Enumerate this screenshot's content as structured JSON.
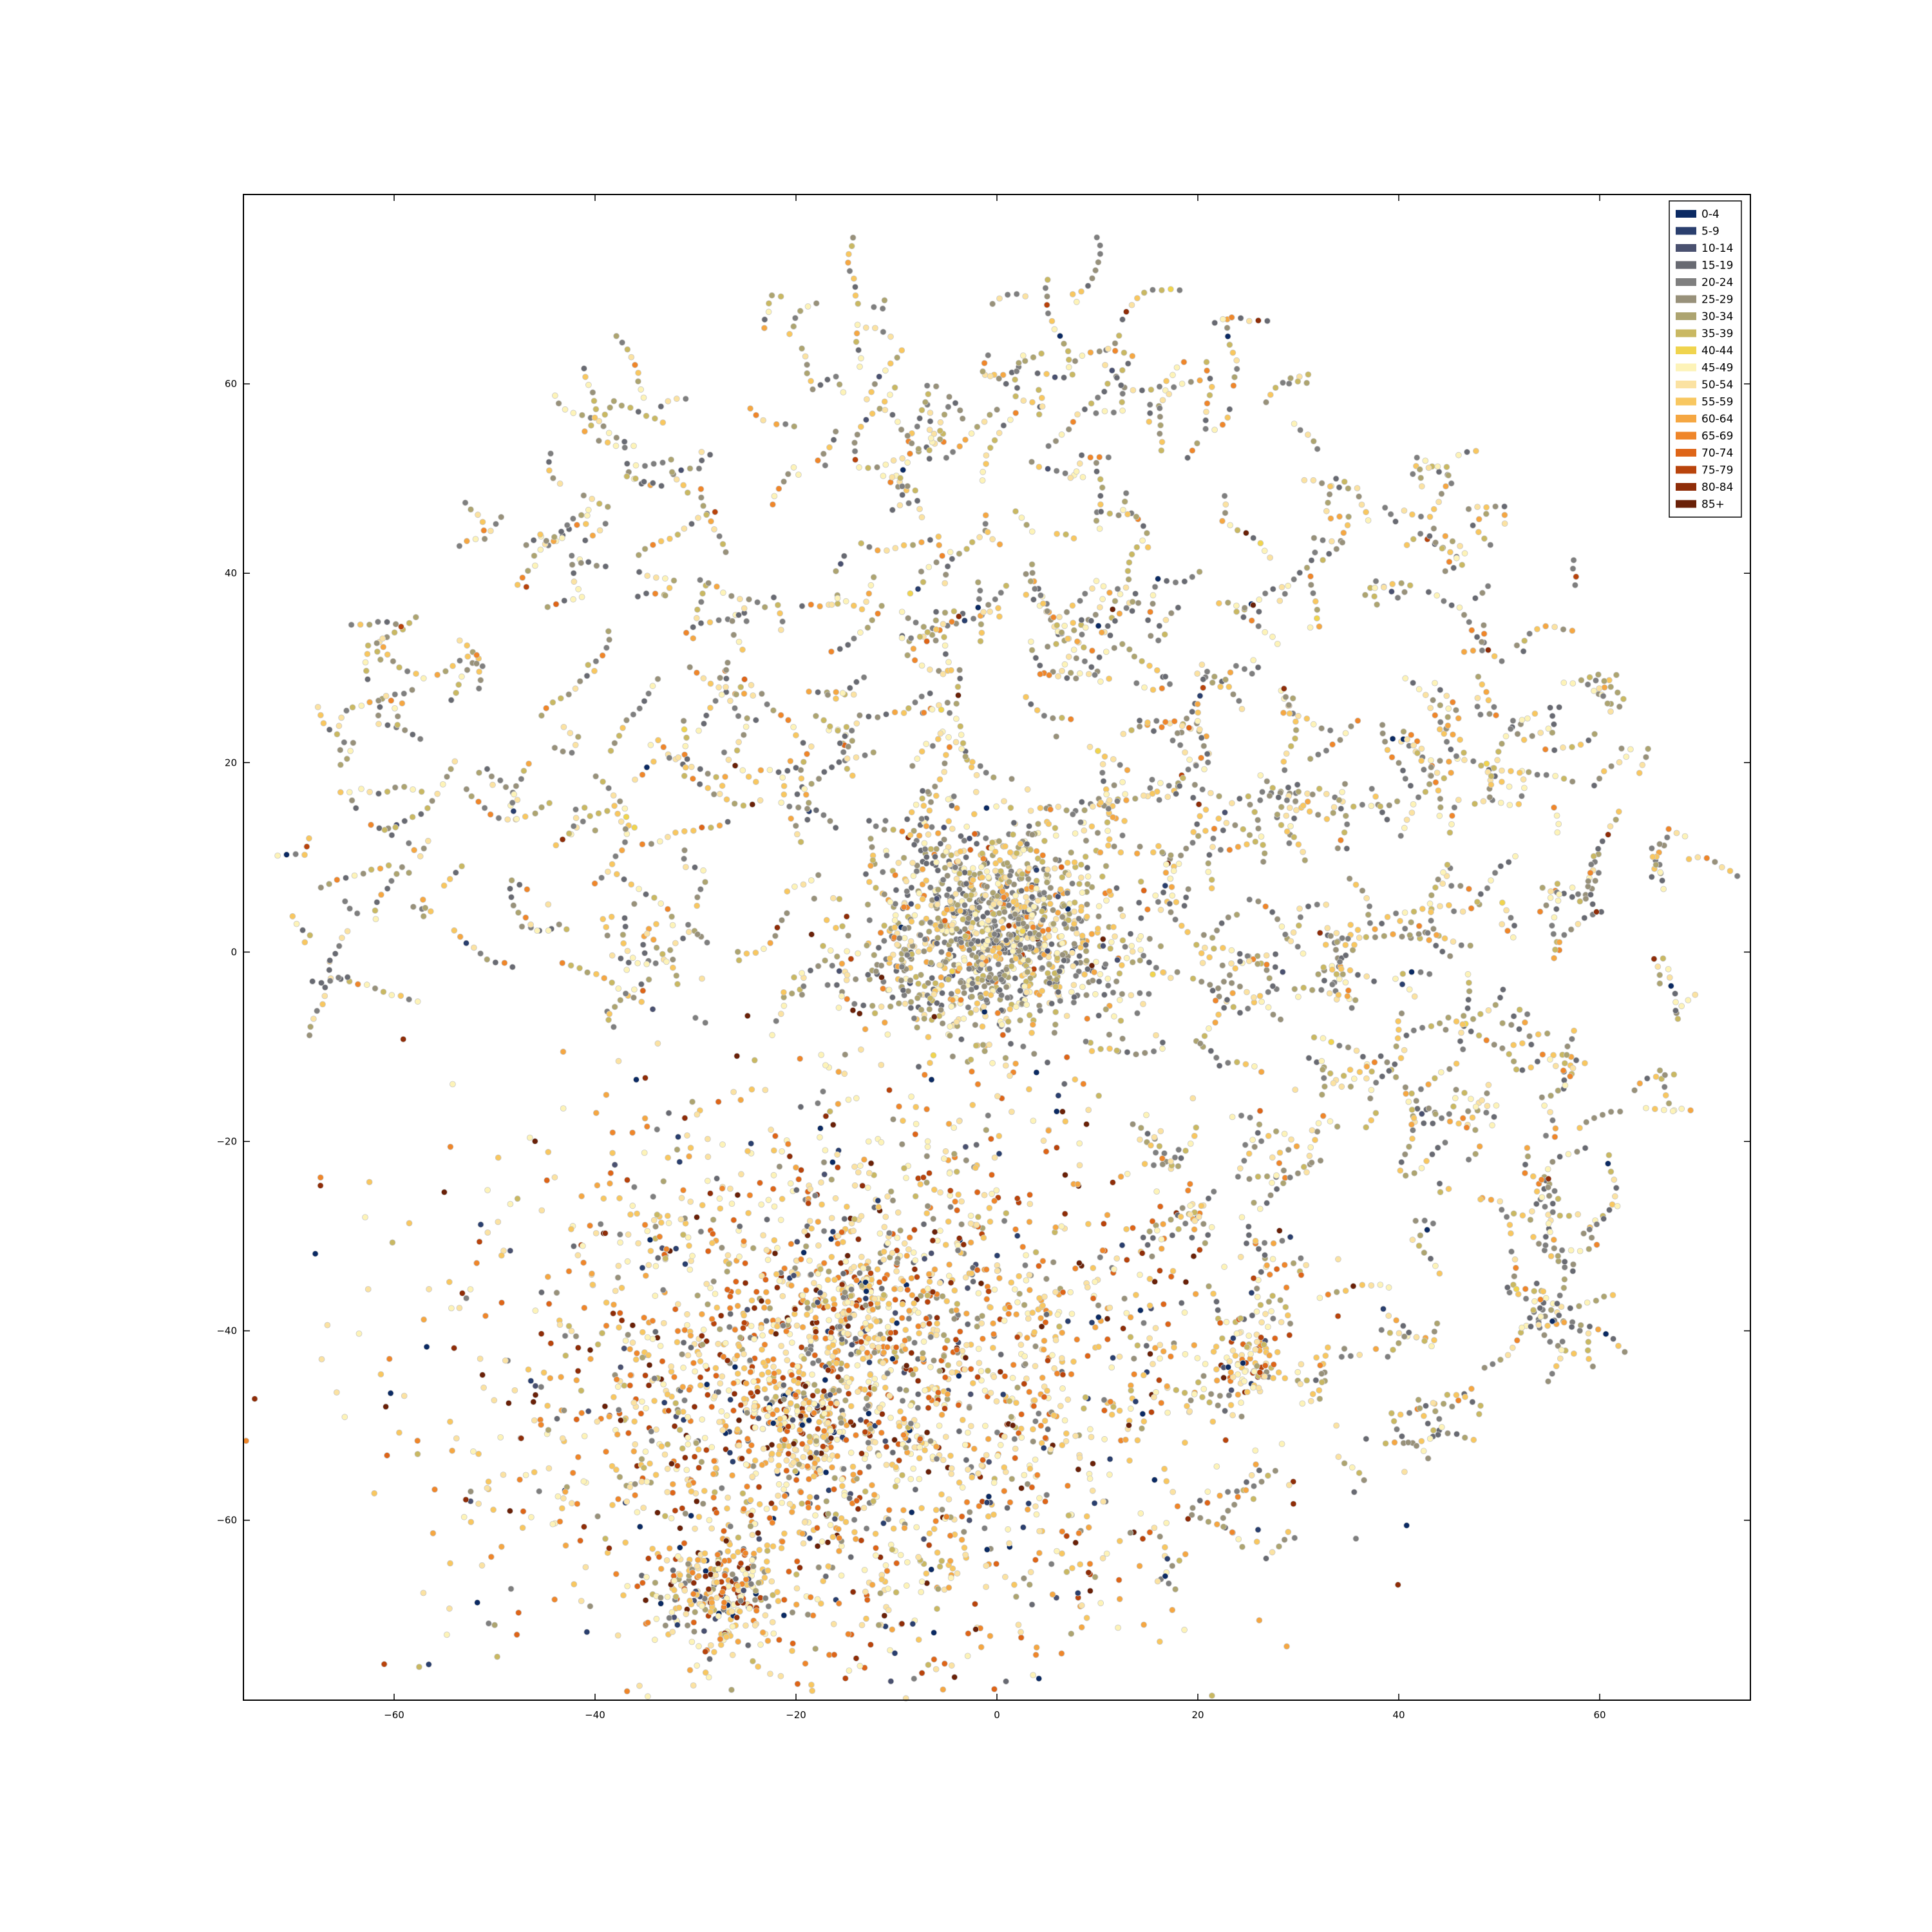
{
  "chart_data": {
    "type": "scatter",
    "title": "",
    "xlabel": "",
    "ylabel": "",
    "xlim": [
      -75,
      75
    ],
    "ylim": [
      -79,
      80
    ],
    "xticks": [
      -60,
      -40,
      -20,
      0,
      20,
      40,
      60
    ],
    "yticks": [
      -60,
      -40,
      -20,
      0,
      20,
      40,
      60
    ],
    "xtick_labels": [
      "−60",
      "−40",
      "−20",
      "0",
      "20",
      "40",
      "60"
    ],
    "ytick_labels": [
      "−60",
      "−40",
      "−20",
      "0",
      "20",
      "40",
      "60"
    ],
    "grid": false,
    "legend_position": "top-right",
    "series": [
      {
        "name": "0-4",
        "color": "#0b2a63"
      },
      {
        "name": "5-9",
        "color": "#2a3f6e"
      },
      {
        "name": "10-14",
        "color": "#4a5170"
      },
      {
        "name": "15-19",
        "color": "#686a72"
      },
      {
        "name": "20-24",
        "color": "#7f7f7f"
      },
      {
        "name": "25-29",
        "color": "#98917a"
      },
      {
        "name": "30-34",
        "color": "#ada470"
      },
      {
        "name": "35-39",
        "color": "#c9b862"
      },
      {
        "name": "40-44",
        "color": "#f0d44e"
      },
      {
        "name": "45-49",
        "color": "#fdf3b8"
      },
      {
        "name": "50-54",
        "color": "#fbe2a2"
      },
      {
        "name": "55-59",
        "color": "#f8c760"
      },
      {
        "name": "60-64",
        "color": "#f5a742"
      },
      {
        "name": "65-69",
        "color": "#ef862a"
      },
      {
        "name": "70-74",
        "color": "#de6518"
      },
      {
        "name": "75-79",
        "color": "#b9440c"
      },
      {
        "name": "80-84",
        "color": "#8f2d08"
      },
      {
        "name": "85+",
        "color": "#6a2108"
      }
    ],
    "regions": [
      {
        "label": "dense cluster",
        "center": [
          0,
          2
        ],
        "spread": 6,
        "size": 1100
      },
      {
        "label": "diffuse lower-left",
        "center": [
          -15,
          -45
        ],
        "spread": 18,
        "size": 2600
      },
      {
        "label": "lower-left knot",
        "center": [
          -28,
          -68
        ],
        "spread": 3,
        "size": 220
      },
      {
        "label": "lower-right knot",
        "center": [
          25,
          -43
        ],
        "spread": 1.8,
        "size": 90
      },
      {
        "label": "mid-left knot",
        "center": [
          -15,
          -38
        ],
        "spread": 2.5,
        "size": 120
      },
      {
        "label": "center-left knot",
        "center": [
          -20,
          -50
        ],
        "spread": 3,
        "size": 140
      }
    ],
    "filament_field": {
      "center": [
        0,
        0
      ],
      "radius": 70,
      "chains": 650
    }
  }
}
